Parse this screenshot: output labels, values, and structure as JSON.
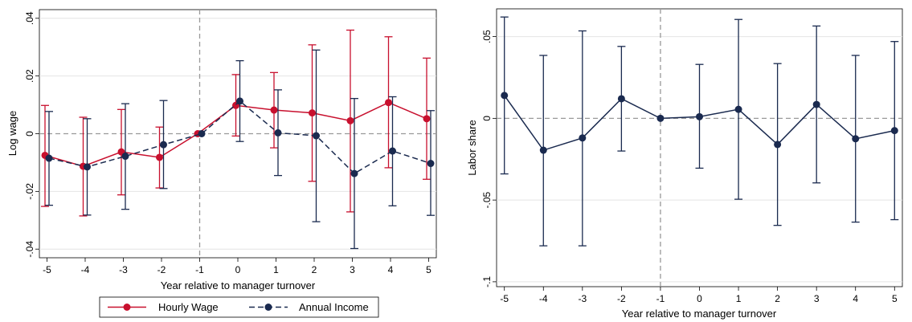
{
  "chart_data": [
    {
      "type": "line",
      "x": [
        -5,
        -4,
        -3,
        -2,
        -1,
        0,
        1,
        2,
        3,
        4,
        5
      ],
      "xlabel": "Year relative to manager turnover",
      "ylabel": "Log wage",
      "xlim": [
        -5.2,
        5.2
      ],
      "ylim": [
        -0.043,
        0.043
      ],
      "yticks": [
        -0.04,
        -0.02,
        0,
        0.02,
        0.04
      ],
      "ytick_labels": [
        "-.04",
        "-.02",
        "0",
        ".02",
        ".04"
      ],
      "xticks": [
        -5,
        -4,
        -3,
        -2,
        -1,
        0,
        1,
        2,
        3,
        4,
        5
      ],
      "xtick_labels": [
        "-5",
        "-4",
        "-3",
        "-2",
        "-1",
        "0",
        "1",
        "2",
        "3",
        "4",
        "5"
      ],
      "grid": true,
      "hline": 0,
      "vline": -1,
      "legend": "bottom",
      "series": [
        {
          "name": "Hourly Wage",
          "color": "#c8102e",
          "line_style": "solid",
          "values": [
            -0.0075,
            -0.0113,
            -0.0063,
            -0.0082,
            0.0,
            0.0098,
            0.0082,
            0.0072,
            0.0045,
            0.0108,
            0.0052
          ],
          "ci_low": [
            -0.0252,
            -0.0285,
            -0.0212,
            -0.0188,
            0.0,
            -0.0008,
            -0.0049,
            -0.0165,
            -0.0271,
            -0.0118,
            -0.0158
          ],
          "ci_high": [
            0.0098,
            0.0057,
            0.0084,
            0.0023,
            0.0,
            0.0205,
            0.0212,
            0.0308,
            0.0359,
            0.0336,
            0.0262
          ]
        },
        {
          "name": "Annual Income",
          "color": "#1a2a4f",
          "line_style": "dashed",
          "values": [
            -0.0085,
            -0.0115,
            -0.0078,
            -0.0038,
            0.0,
            0.0113,
            0.0003,
            -0.0007,
            -0.0138,
            -0.006,
            -0.0103
          ],
          "ci_low": [
            -0.0248,
            -0.0282,
            -0.0262,
            -0.019,
            0.0,
            -0.0027,
            -0.0145,
            -0.0305,
            -0.0398,
            -0.025,
            -0.0283
          ],
          "ci_high": [
            0.0077,
            0.0052,
            0.0104,
            0.0115,
            0.0,
            0.0253,
            0.0152,
            0.029,
            0.0122,
            0.0128,
            0.008
          ]
        }
      ]
    },
    {
      "type": "line",
      "x": [
        -5,
        -4,
        -3,
        -2,
        -1,
        0,
        1,
        2,
        3,
        4,
        5
      ],
      "xlabel": "Year relative to manager turnover",
      "ylabel": "Labor share",
      "xlim": [
        -5.2,
        5.2
      ],
      "ylim": [
        -0.103,
        0.067
      ],
      "yticks": [
        -0.1,
        -0.05,
        0,
        0.05
      ],
      "ytick_labels": [
        "-.1",
        "-.05",
        "0",
        ".05"
      ],
      "xticks": [
        -5,
        -4,
        -3,
        -2,
        -1,
        0,
        1,
        2,
        3,
        4,
        5
      ],
      "xtick_labels": [
        "-5",
        "-4",
        "-3",
        "-2",
        "-1",
        "0",
        "1",
        "2",
        "3",
        "4",
        "5"
      ],
      "grid": true,
      "hline": 0,
      "vline": -1,
      "series": [
        {
          "color": "#1a2a4f",
          "line_style": "solid",
          "values": [
            0.014,
            -0.0195,
            -0.012,
            0.012,
            0.0,
            0.001,
            0.0055,
            -0.016,
            0.0085,
            -0.0125,
            -0.0075
          ],
          "ci_low": [
            -0.034,
            -0.078,
            -0.078,
            -0.02,
            0.0,
            -0.0305,
            -0.0495,
            -0.0655,
            -0.0395,
            -0.0635,
            -0.062
          ],
          "ci_high": [
            0.062,
            0.0385,
            0.0535,
            0.044,
            0.0,
            0.033,
            0.0605,
            0.0335,
            0.0565,
            0.0385,
            0.047
          ]
        }
      ]
    }
  ]
}
